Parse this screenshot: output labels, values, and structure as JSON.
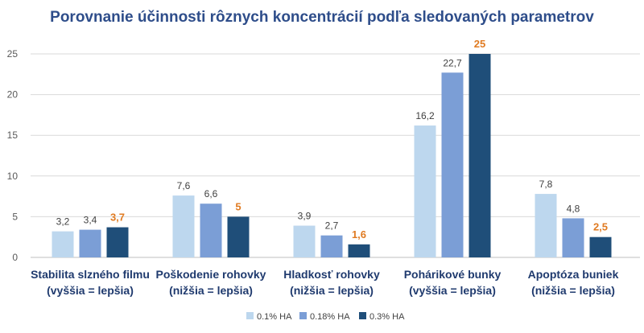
{
  "chart_data": {
    "type": "bar",
    "title": "Porovnanie účinnosti rôznych koncentrácií podľa sledovaných parametrov",
    "categories": [
      [
        "Stabilita slzného filmu",
        "(vyššia = lepšia)"
      ],
      [
        "Poškodenie rohovky",
        "(nižšia = lepšia)"
      ],
      [
        "Hladkosť rohovky",
        "(nižšia = lepšia)"
      ],
      [
        "Pohárikové bunky",
        "(vyššia = lepšia)"
      ],
      [
        "Apoptóza buniek",
        "(nižšia = lepšia)"
      ]
    ],
    "series": [
      {
        "name": "0.1% HA",
        "color": "#bdd7ee",
        "values": [
          3.2,
          7.6,
          3.9,
          16.2,
          7.8
        ],
        "labels": [
          "3,2",
          "7,6",
          "3,9",
          "16,2",
          "7,8"
        ]
      },
      {
        "name": "0.18% HA",
        "color": "#7b9ed6",
        "values": [
          3.4,
          6.6,
          2.7,
          22.7,
          4.8
        ],
        "labels": [
          "3,4",
          "6,6",
          "2,7",
          "22,7",
          "4,8"
        ]
      },
      {
        "name": "0.3% HA",
        "color": "#1f4e79",
        "values": [
          3.7,
          5,
          1.6,
          25,
          2.5
        ],
        "labels": [
          "3,7",
          "5",
          "1,6",
          "25",
          "2,5"
        ],
        "highlight": true
      }
    ],
    "highlight_label_color": "#e07b22",
    "yticks": [
      0,
      5,
      10,
      15,
      20,
      25
    ],
    "ylim": [
      0,
      25
    ],
    "grid": true,
    "legend": "bottom-center"
  }
}
